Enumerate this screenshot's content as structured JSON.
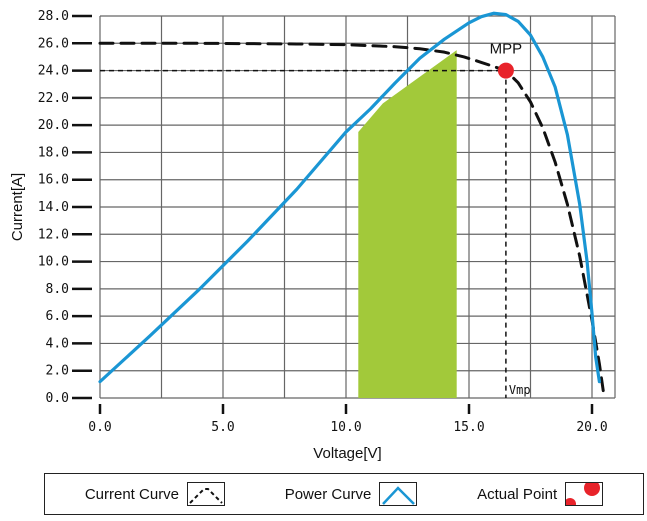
{
  "chart_data": {
    "type": "line",
    "xlabel": "Voltage[V]",
    "ylabel": "Current[A]",
    "xlim": [
      0,
      20.5
    ],
    "ylim": [
      0,
      28
    ],
    "x_ticks": [
      0,
      5,
      10,
      15,
      20
    ],
    "x_tick_labels": [
      "0.0",
      "5.0",
      "10.0",
      "15.0",
      "20.0"
    ],
    "y_ticks": [
      0,
      2,
      4,
      6,
      8,
      10,
      12,
      14,
      16,
      18,
      20,
      22,
      24,
      26,
      28
    ],
    "y_tick_labels": [
      "0.0",
      "2.0",
      "4.0",
      "6.0",
      "8.0",
      "10.0",
      "12.0",
      "14.0",
      "16.0",
      "18.0",
      "20.0",
      "22.0",
      "24.0",
      "26.0",
      "28.0"
    ],
    "grid": true,
    "series": [
      {
        "name": "Current Curve",
        "style": "dashed",
        "color": "#111111",
        "x": [
          0,
          4,
          8,
          10,
          12,
          13,
          14,
          14.8,
          15.5,
          16,
          16.5,
          17,
          17.5,
          18,
          18.5,
          19,
          19.5,
          20,
          20.3,
          20.5
        ],
        "y": [
          26,
          26,
          25.95,
          25.9,
          25.75,
          25.6,
          25.35,
          25,
          24.6,
          24.3,
          24,
          23.1,
          21.7,
          19.8,
          17.3,
          14.2,
          10.4,
          5.7,
          2.5,
          0
        ]
      },
      {
        "name": "Power Curve",
        "style": "solid",
        "color": "#1a96d4",
        "x": [
          0,
          2,
          4,
          6,
          8,
          10,
          11,
          12,
          13,
          14,
          15,
          15.5,
          16,
          16.5,
          17,
          17.5,
          18,
          18.5,
          19,
          19.5,
          19.8,
          20,
          20.15,
          20.3
        ],
        "y": [
          1.2,
          4.5,
          7.9,
          11.5,
          15.3,
          19.5,
          21.2,
          23.1,
          24.9,
          26.3,
          27.5,
          27.95,
          28.2,
          28.1,
          27.6,
          26.6,
          25,
          22.8,
          19.3,
          14.2,
          10,
          6.2,
          3,
          1.2
        ]
      }
    ],
    "shaded_region": {
      "color": "#a2c93a",
      "polygon": [
        [
          10.5,
          0
        ],
        [
          10.5,
          19.5
        ],
        [
          11.5,
          21.6
        ],
        [
          14.5,
          25.5
        ],
        [
          14.5,
          0
        ]
      ]
    },
    "points": [
      {
        "name": "Actual Point",
        "label": "MPP",
        "x": 16.5,
        "y": 24,
        "color": "#e8232a"
      }
    ],
    "reference_lines": {
      "x": 16.5,
      "y": 24,
      "x_label": "Vmp"
    }
  },
  "legend": {
    "items": [
      {
        "label": "Current Curve",
        "icon": "current-curve-icon"
      },
      {
        "label": "Power Curve",
        "icon": "power-curve-icon"
      },
      {
        "label": "Actual Point",
        "icon": "actual-point-icon"
      }
    ]
  }
}
